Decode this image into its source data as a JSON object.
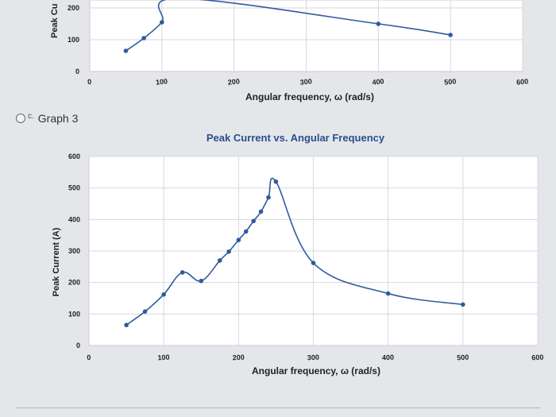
{
  "option": {
    "letter": "c.",
    "label": "Graph 3"
  },
  "colors": {
    "series": "#2f5a9e",
    "plot_bg": "#ffffff",
    "grid": "#d6d8dc",
    "title": "#2a4e8c",
    "axis_text": "#222222"
  },
  "chart_data": [
    {
      "type": "line",
      "title": "",
      "xlabel": "Angular frequency, ω (rad/s)",
      "ylabel": "Peak Cu",
      "xlim": [
        0,
        600
      ],
      "xticks": [
        "0",
        "100",
        "200",
        "300",
        "400",
        "500",
        "600"
      ],
      "yticks": [
        "0",
        "100",
        "200"
      ],
      "grid": true,
      "marker": "circle",
      "series": [
        {
          "x": [
            50,
            75,
            100,
            125,
            400,
            500
          ],
          "y": [
            65,
            105,
            155,
            230,
            150,
            115
          ]
        }
      ]
    },
    {
      "type": "line",
      "title": "Peak Current vs. Angular Frequency",
      "xlabel": "Angular frequency, ω (rad/s)",
      "ylabel": "Peak Current (A)",
      "xlim": [
        0,
        600
      ],
      "ylim": [
        0,
        600
      ],
      "xticks": [
        "0",
        "100",
        "200",
        "300",
        "400",
        "500",
        "600"
      ],
      "yticks": [
        "0",
        "100",
        "200",
        "300",
        "400",
        "500",
        "600"
      ],
      "grid": true,
      "marker": "circle",
      "series": [
        {
          "x": [
            50,
            75,
            100,
            125,
            150,
            175,
            187,
            200,
            210,
            220,
            230,
            240,
            250,
            300,
            400,
            500
          ],
          "y": [
            65,
            108,
            162,
            232,
            205,
            270,
            298,
            335,
            362,
            395,
            425,
            470,
            520,
            262,
            165,
            130
          ]
        }
      ]
    }
  ]
}
